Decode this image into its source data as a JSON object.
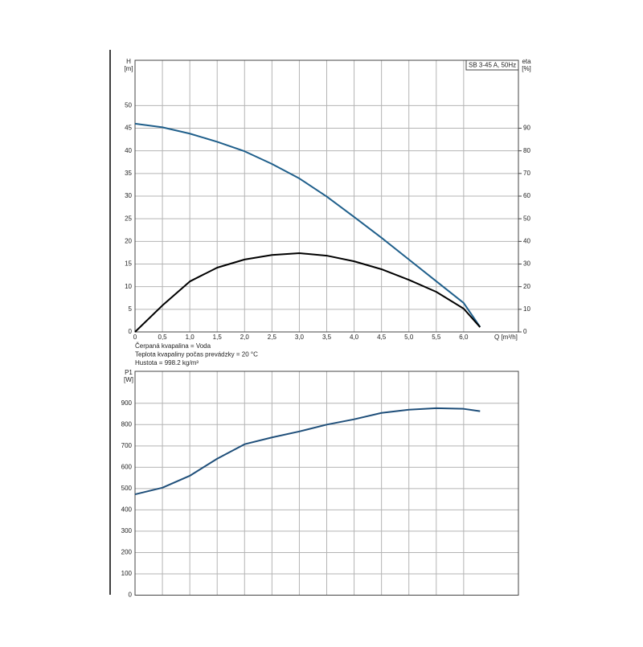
{
  "chart_data": [
    {
      "type": "line",
      "title": "SB 3-45 A, 50Hz",
      "y_label": "H",
      "y_unit": "[m]",
      "y2_label": "eta",
      "y2_unit": "[%]",
      "x_label": "Q [m³/h]",
      "notes": [
        "Čerpaná kvapalina = Voda",
        "Teplota kvapaliny počas prevádzky = 20 °C",
        "Hustota = 998.2 kg/m³"
      ],
      "x": [
        0,
        0.5,
        1.0,
        1.5,
        2.0,
        2.5,
        3.0,
        3.5,
        4.0,
        4.5,
        5.0,
        5.5,
        6.0,
        6.3
      ],
      "series": [
        {
          "color": "#1f5f8b",
          "values": [
            46,
            45.2,
            43.8,
            42.0,
            39.9,
            37.1,
            33.9,
            29.9,
            25.4,
            20.8,
            16.0,
            11.2,
            6.4,
            1.1
          ]
        },
        {
          "color": "#000000",
          "axis": "y2",
          "values": [
            0,
            11.7,
            22.3,
            28.4,
            32,
            34,
            34.8,
            33.7,
            31.2,
            27.7,
            23,
            17.7,
            10.3,
            2.1
          ]
        }
      ],
      "xlim": [
        0,
        7
      ],
      "xticks": [
        0,
        {
          "value": 0.5,
          "label": "0,5"
        },
        {
          "value": 1,
          "label": "1,0"
        },
        {
          "value": 1.5,
          "label": "1,5"
        },
        {
          "value": 2,
          "label": "2,0"
        },
        {
          "value": 2.5,
          "label": "2,5"
        },
        {
          "value": 3,
          "label": "3,0"
        },
        {
          "value": 3.5,
          "label": "3,5"
        },
        {
          "value": 4,
          "label": "4,0"
        },
        {
          "value": 4.5,
          "label": "4,5"
        },
        {
          "value": 5,
          "label": "5,0"
        },
        {
          "value": 5.5,
          "label": "5,5"
        },
        {
          "value": 6,
          "label": "6,0"
        }
      ],
      "ylim": [
        0,
        60
      ],
      "yticks": [
        0,
        5,
        10,
        15,
        20,
        25,
        30,
        35,
        40,
        45,
        50
      ],
      "y2lim": [
        0,
        120
      ],
      "y2ticks": [
        0,
        10,
        20,
        30,
        40,
        50,
        60,
        70,
        80,
        90
      ],
      "grid": true
    },
    {
      "type": "line",
      "y_label": "P1",
      "y_unit": "[W]",
      "x": [
        0,
        0.5,
        1.0,
        1.5,
        2.0,
        2.5,
        3.0,
        3.5,
        4.0,
        4.5,
        5.0,
        5.5,
        6.0,
        6.3
      ],
      "series": [
        {
          "color": "#1f4f7a",
          "values": [
            473,
            504,
            560,
            640,
            708,
            740,
            768,
            800,
            825,
            855,
            870,
            877,
            874,
            863
          ]
        }
      ],
      "xlim": [
        0,
        7
      ],
      "xticks": [
        0,
        0.5,
        1,
        1.5,
        2,
        2.5,
        3,
        3.5,
        4,
        4.5,
        5,
        5.5,
        6
      ],
      "ylim": [
        0,
        1050
      ],
      "yticks": [
        0,
        100,
        200,
        300,
        400,
        500,
        600,
        700,
        800,
        900
      ],
      "grid": true
    }
  ]
}
